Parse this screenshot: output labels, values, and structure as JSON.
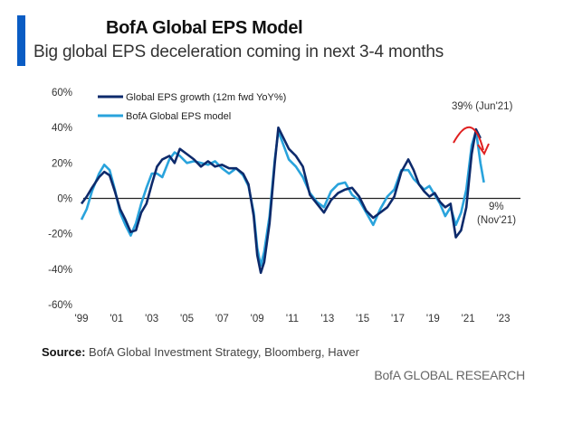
{
  "header": {
    "title": "BofA Global EPS Model",
    "subtitle": "Big global EPS deceleration coming in next 3-4 months"
  },
  "footer": {
    "source_label": "Source:",
    "source_text": " BofA Global Investment Strategy, Bloomberg, Haver",
    "brand": "BofA GLOBAL RESEARCH"
  },
  "colors": {
    "accent": "#0a5cc4",
    "eps_growth": "#0d2a6b",
    "eps_model": "#29a3dc",
    "arrow": "#e02020",
    "zero_line": "#222222"
  },
  "chart_data": {
    "type": "line",
    "title": "BofA Global EPS Model",
    "xlabel": "",
    "ylabel": "",
    "ylim": [
      -60,
      60
    ],
    "xlim": [
      1999,
      2023
    ],
    "y_ticks": [
      60,
      40,
      20,
      0,
      -20,
      -40,
      -60
    ],
    "y_tick_labels": [
      "60%",
      "40%",
      "20%",
      "0%",
      "-20%",
      "-40%",
      "-60%"
    ],
    "x_ticks": [
      1999,
      2001,
      2003,
      2005,
      2007,
      2009,
      2011,
      2013,
      2015,
      2017,
      2019,
      2021,
      2023
    ],
    "x_tick_labels": [
      "'99",
      "'01",
      "'03",
      "'05",
      "'07",
      "'09",
      "'11",
      "'13",
      "'15",
      "'17",
      "'19",
      "'21",
      "'23"
    ],
    "grid": false,
    "zero_line": true,
    "legend_position": "top-left",
    "series": [
      {
        "name": "Global EPS growth (12m fwd YoY%)",
        "color": "#0d2a6b",
        "x": [
          1999.0,
          1999.3,
          1999.6,
          2000.0,
          2000.3,
          2000.6,
          2000.9,
          2001.2,
          2001.5,
          2001.8,
          2002.1,
          2002.4,
          2002.7,
          2003.0,
          2003.3,
          2003.6,
          2004.0,
          2004.3,
          2004.6,
          2005.0,
          2005.4,
          2005.8,
          2006.2,
          2006.6,
          2007.0,
          2007.4,
          2007.8,
          2008.2,
          2008.5,
          2008.8,
          2009.0,
          2009.2,
          2009.4,
          2009.7,
          2010.0,
          2010.2,
          2010.5,
          2010.8,
          2011.2,
          2011.6,
          2012.0,
          2012.4,
          2012.8,
          2013.2,
          2013.6,
          2014.0,
          2014.4,
          2014.8,
          2015.2,
          2015.6,
          2016.0,
          2016.4,
          2016.8,
          2017.2,
          2017.6,
          2017.9,
          2018.2,
          2018.5,
          2018.8,
          2019.1,
          2019.4,
          2019.7,
          2020.0,
          2020.3,
          2020.6,
          2020.9,
          2021.2,
          2021.45,
          2021.7
        ],
        "values": [
          -3,
          1,
          6,
          12,
          15,
          13,
          4,
          -6,
          -12,
          -19,
          -18,
          -8,
          -3,
          8,
          18,
          22,
          24,
          20,
          28,
          25,
          22,
          18,
          21,
          18,
          19,
          17,
          17,
          14,
          8,
          -10,
          -32,
          -42,
          -36,
          -14,
          20,
          40,
          34,
          28,
          24,
          18,
          2,
          -3,
          -8,
          -1,
          3,
          5,
          6,
          1,
          -7,
          -11,
          -8,
          -5,
          1,
          15,
          22,
          16,
          8,
          4,
          1,
          3,
          -2,
          -5,
          -3,
          -22,
          -18,
          -5,
          25,
          39,
          34
        ]
      },
      {
        "name": "BofA Global EPS model",
        "color": "#29a3dc",
        "x": [
          1999.0,
          1999.3,
          1999.6,
          2000.0,
          2000.3,
          2000.6,
          2000.9,
          2001.2,
          2001.5,
          2001.8,
          2002.1,
          2002.4,
          2002.7,
          2003.0,
          2003.3,
          2003.6,
          2004.0,
          2004.3,
          2004.6,
          2005.0,
          2005.4,
          2005.8,
          2006.2,
          2006.6,
          2007.0,
          2007.4,
          2007.8,
          2008.2,
          2008.5,
          2008.8,
          2009.0,
          2009.2,
          2009.4,
          2009.7,
          2010.0,
          2010.2,
          2010.5,
          2010.8,
          2011.2,
          2011.6,
          2012.0,
          2012.4,
          2012.8,
          2013.2,
          2013.6,
          2014.0,
          2014.4,
          2014.8,
          2015.2,
          2015.6,
          2016.0,
          2016.4,
          2016.8,
          2017.2,
          2017.6,
          2017.9,
          2018.2,
          2018.5,
          2018.8,
          2019.1,
          2019.4,
          2019.7,
          2020.0,
          2020.3,
          2020.6,
          2020.9,
          2021.2,
          2021.45,
          2021.7,
          2021.9
        ],
        "values": [
          -12,
          -6,
          4,
          14,
          19,
          16,
          5,
          -8,
          -15,
          -21,
          -14,
          -3,
          6,
          14,
          14,
          12,
          22,
          26,
          24,
          20,
          21,
          20,
          19,
          21,
          17,
          14,
          17,
          13,
          7,
          -8,
          -28,
          -38,
          -30,
          -10,
          22,
          38,
          30,
          22,
          18,
          12,
          3,
          -2,
          -5,
          4,
          8,
          9,
          2,
          -1,
          -8,
          -15,
          -6,
          1,
          5,
          16,
          16,
          11,
          8,
          5,
          7,
          2,
          -3,
          -10,
          -5,
          -15,
          -8,
          5,
          30,
          38,
          20,
          9
        ]
      }
    ],
    "annotations": [
      {
        "text": "39% (Jun'21)",
        "x": 2021.45,
        "y": 39
      },
      {
        "text": "9%",
        "x": 2021.9,
        "y": 9
      },
      {
        "text": "(Nov'21)",
        "x": 2021.9,
        "y": 9
      }
    ]
  }
}
